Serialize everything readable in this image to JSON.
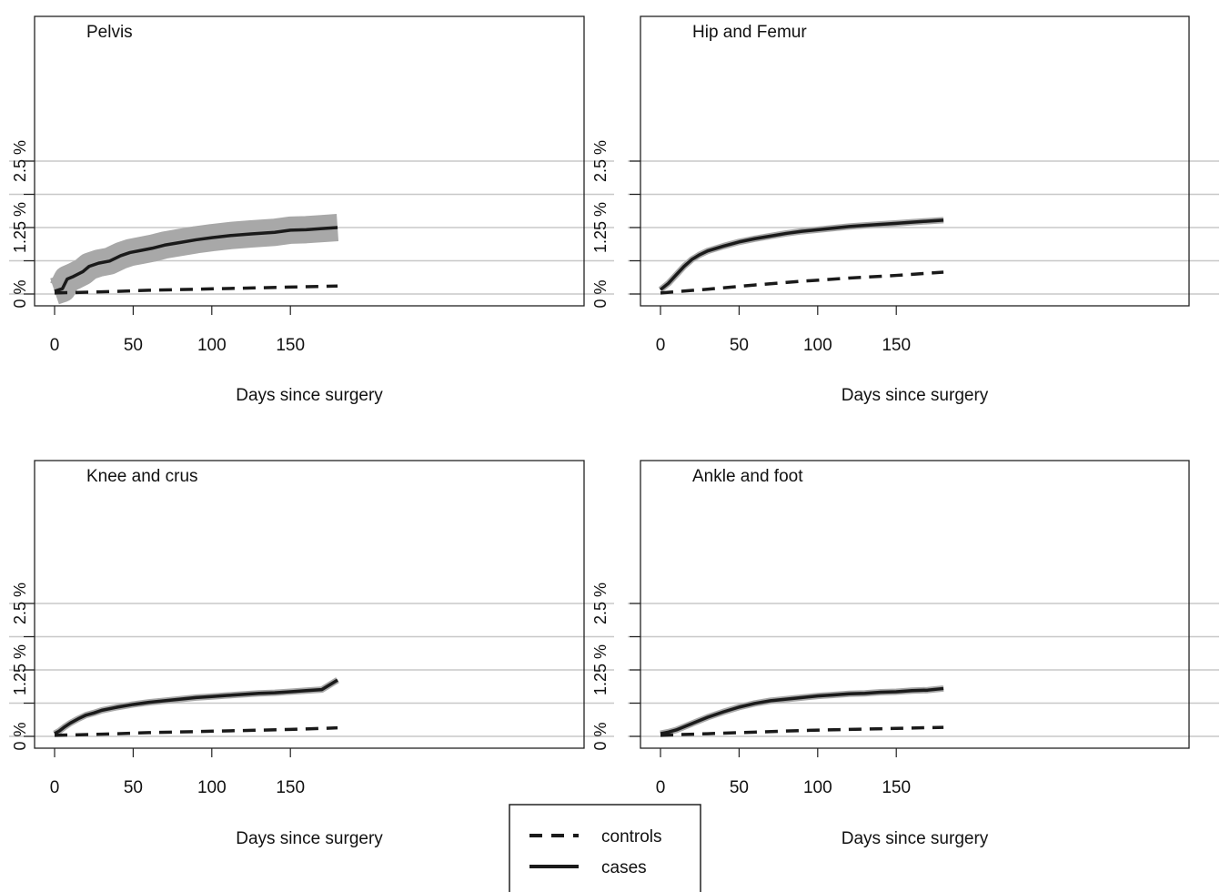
{
  "chart_data": [
    {
      "type": "line",
      "title": "Pelvis",
      "xlabel": "Days since surgery",
      "ylabel": "",
      "xlim": [
        0,
        180
      ],
      "ylim": [
        0,
        2.5
      ],
      "x_ticks": [
        0,
        50,
        100,
        150
      ],
      "y_ticks": [
        "0 %",
        "1.25 %",
        "2.5 %"
      ],
      "grid": true,
      "series": [
        {
          "name": "cases",
          "style": "solid",
          "band": true,
          "x": [
            0,
            3,
            5,
            8,
            12,
            18,
            22,
            28,
            35,
            42,
            48,
            55,
            62,
            70,
            80,
            90,
            100,
            112,
            125,
            140,
            150,
            160,
            170,
            180
          ],
          "y": [
            0.05,
            0.08,
            0.1,
            0.28,
            0.33,
            0.42,
            0.52,
            0.58,
            0.62,
            0.72,
            0.78,
            0.82,
            0.86,
            0.92,
            0.97,
            1.02,
            1.06,
            1.1,
            1.13,
            1.16,
            1.2,
            1.21,
            1.23,
            1.25
          ]
        },
        {
          "name": "controls",
          "style": "dashed",
          "band": false,
          "x": [
            0,
            30,
            60,
            90,
            120,
            150,
            180
          ],
          "y": [
            0.02,
            0.04,
            0.07,
            0.09,
            0.11,
            0.13,
            0.15
          ]
        }
      ]
    },
    {
      "type": "line",
      "title": "Hip and Femur",
      "xlabel": "Days since surgery",
      "ylabel": "",
      "xlim": [
        0,
        180
      ],
      "ylim": [
        0,
        2.5
      ],
      "x_ticks": [
        0,
        50,
        100,
        150
      ],
      "y_ticks": [
        "0 %",
        "1.25 %",
        "2.5 %"
      ],
      "grid": true,
      "series": [
        {
          "name": "cases",
          "style": "solid",
          "band": true,
          "x": [
            0,
            5,
            10,
            15,
            20,
            25,
            30,
            40,
            50,
            60,
            70,
            80,
            90,
            100,
            110,
            120,
            130,
            140,
            150,
            160,
            170,
            180
          ],
          "y": [
            0.08,
            0.2,
            0.36,
            0.52,
            0.65,
            0.74,
            0.81,
            0.9,
            0.98,
            1.04,
            1.09,
            1.14,
            1.18,
            1.21,
            1.24,
            1.27,
            1.29,
            1.31,
            1.33,
            1.35,
            1.37,
            1.39
          ]
        },
        {
          "name": "controls",
          "style": "dashed",
          "band": false,
          "x": [
            0,
            30,
            60,
            90,
            120,
            150,
            180
          ],
          "y": [
            0.02,
            0.09,
            0.17,
            0.24,
            0.3,
            0.35,
            0.41
          ]
        }
      ]
    },
    {
      "type": "line",
      "title": "Knee and crus",
      "xlabel": "Days since surgery",
      "ylabel": "",
      "xlim": [
        0,
        180
      ],
      "ylim": [
        0,
        2.5
      ],
      "x_ticks": [
        0,
        50,
        100,
        150
      ],
      "y_ticks": [
        "0 %",
        "1.25 %",
        "2.5 %"
      ],
      "grid": true,
      "series": [
        {
          "name": "cases",
          "style": "solid",
          "band": true,
          "x": [
            0,
            3,
            6,
            10,
            15,
            20,
            25,
            30,
            40,
            50,
            60,
            70,
            80,
            90,
            100,
            110,
            120,
            130,
            140,
            150,
            160,
            170,
            180
          ],
          "y": [
            0.05,
            0.1,
            0.17,
            0.25,
            0.33,
            0.4,
            0.44,
            0.49,
            0.55,
            0.6,
            0.64,
            0.67,
            0.7,
            0.73,
            0.75,
            0.77,
            0.79,
            0.81,
            0.82,
            0.84,
            0.86,
            0.88,
            1.06
          ]
        },
        {
          "name": "controls",
          "style": "dashed",
          "band": false,
          "x": [
            0,
            30,
            60,
            90,
            120,
            150,
            180
          ],
          "y": [
            0.02,
            0.04,
            0.07,
            0.09,
            0.11,
            0.13,
            0.16
          ]
        }
      ]
    },
    {
      "type": "line",
      "title": "Ankle and foot",
      "xlabel": "Days since surgery",
      "ylabel": "",
      "xlim": [
        0,
        180
      ],
      "ylim": [
        0,
        2.5
      ],
      "x_ticks": [
        0,
        50,
        100,
        150
      ],
      "y_ticks": [
        "0 %",
        "1.25 %",
        "2.5 %"
      ],
      "grid": true,
      "series": [
        {
          "name": "cases",
          "style": "solid",
          "band": true,
          "x": [
            0,
            5,
            10,
            15,
            20,
            30,
            40,
            50,
            60,
            70,
            80,
            90,
            100,
            110,
            120,
            130,
            140,
            150,
            160,
            170,
            180
          ],
          "y": [
            0.05,
            0.08,
            0.12,
            0.18,
            0.24,
            0.36,
            0.46,
            0.55,
            0.62,
            0.67,
            0.7,
            0.73,
            0.76,
            0.78,
            0.8,
            0.81,
            0.83,
            0.84,
            0.86,
            0.87,
            0.9
          ]
        },
        {
          "name": "controls",
          "style": "dashed",
          "band": false,
          "x": [
            0,
            30,
            60,
            90,
            120,
            150,
            180
          ],
          "y": [
            0.02,
            0.05,
            0.08,
            0.11,
            0.13,
            0.15,
            0.17
          ]
        }
      ]
    }
  ],
  "legend": {
    "placement": "bottom-center",
    "items": [
      {
        "label": "controls",
        "style": "dashed"
      },
      {
        "label": "cases",
        "style": "solid"
      }
    ]
  },
  "colors": {
    "line": "#1a1a1a",
    "band": "#a8a8a8",
    "grid": "#c8c8c8",
    "frame": "#222222"
  }
}
